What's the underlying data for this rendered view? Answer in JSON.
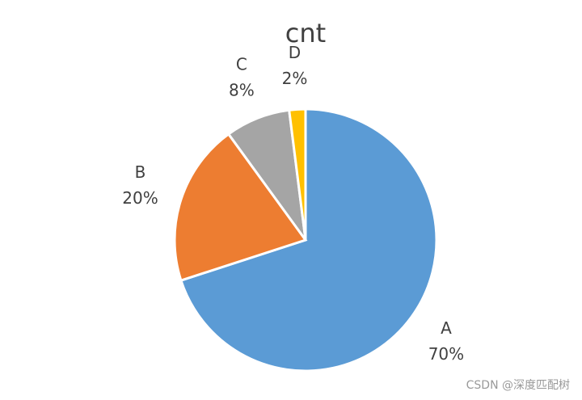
{
  "chart_data": {
    "type": "pie",
    "title": "cnt",
    "categories": [
      "A",
      "B",
      "C",
      "D"
    ],
    "values": [
      70,
      20,
      8,
      2
    ],
    "value_labels": [
      "70%",
      "20%",
      "8%",
      "2%"
    ],
    "colors": [
      "#5b9bd5",
      "#ed7d31",
      "#a5a5a5",
      "#ffc000"
    ]
  },
  "watermark": "CSDN @深度匹配树"
}
